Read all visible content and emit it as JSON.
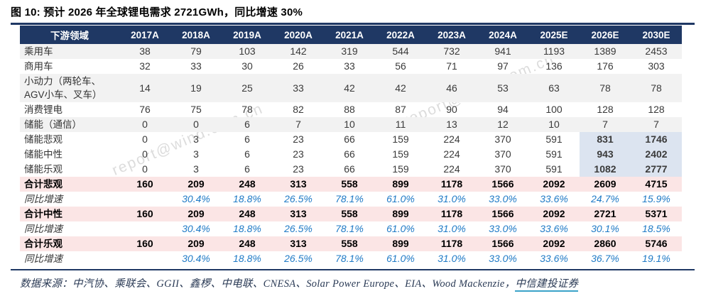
{
  "title": "图 10: 预计 2026 年全球锂电需求 2721GWh，同比增速 30%",
  "watermark": "report@wind.com.cn",
  "source": {
    "text": "数据来源：中汽协、乘联会、GGII、鑫椤、中电联、CNESA、Solar Power Europe、EIA、Wood Mackenzie，",
    "publisher": "中信建投证券"
  },
  "colors": {
    "header_bg": "#1F3864",
    "stripe_bg": "#F2F2F2",
    "total_bg": "#FBE5E5",
    "highlight_bg": "#DCE4F0",
    "growth_text": "#1F7AC6",
    "publisher_underline": "#3BA3C8"
  },
  "chart_data": {
    "type": "table",
    "title": "预计 2026 年全球锂电需求 2721GWh，同比增速 30%",
    "unit_implied": "GWh",
    "columns": [
      "下游领域",
      "2017A",
      "2018A",
      "2019A",
      "2020A",
      "2021A",
      "2022A",
      "2023A",
      "2024A",
      "2025E",
      "2026E",
      "2030E"
    ],
    "rows": [
      {
        "label": "乘用车",
        "kind": "striped",
        "highlight_last2": false,
        "values": [
          "38",
          "79",
          "103",
          "142",
          "319",
          "544",
          "732",
          "941",
          "1193",
          "1389",
          "2453"
        ]
      },
      {
        "label": "商用车",
        "kind": "plain",
        "highlight_last2": false,
        "values": [
          "32",
          "33",
          "30",
          "26",
          "33",
          "56",
          "71",
          "97",
          "136",
          "176",
          "303"
        ]
      },
      {
        "label": "小动力（两轮车、AGV小车、叉车）",
        "kind": "striped",
        "highlight_last2": false,
        "values": [
          "14",
          "19",
          "25",
          "33",
          "42",
          "42",
          "46",
          "53",
          "63",
          "78",
          "78"
        ]
      },
      {
        "label": "消费锂电",
        "kind": "plain",
        "highlight_last2": false,
        "values": [
          "76",
          "75",
          "78",
          "82",
          "88",
          "87",
          "90",
          "94",
          "100",
          "128",
          "128"
        ]
      },
      {
        "label": "储能（通信）",
        "kind": "striped",
        "highlight_last2": false,
        "values": [
          "0",
          "0",
          "6",
          "7",
          "10",
          "11",
          "13",
          "12",
          "10",
          "7",
          "7"
        ]
      },
      {
        "label": "储能悲观",
        "kind": "plain",
        "highlight_last2": true,
        "values": [
          "0",
          "3",
          "6",
          "23",
          "66",
          "159",
          "224",
          "370",
          "591",
          "831",
          "1746"
        ]
      },
      {
        "label": "储能中性",
        "kind": "plain",
        "highlight_last2": true,
        "values": [
          "0",
          "3",
          "6",
          "23",
          "66",
          "159",
          "224",
          "370",
          "591",
          "943",
          "2402"
        ]
      },
      {
        "label": "储能乐观",
        "kind": "plain",
        "highlight_last2": true,
        "values": [
          "0",
          "3",
          "6",
          "23",
          "66",
          "159",
          "224",
          "370",
          "591",
          "1082",
          "2777"
        ]
      },
      {
        "label": "合计悲观",
        "kind": "total",
        "highlight_last2": false,
        "values": [
          "160",
          "209",
          "248",
          "313",
          "558",
          "899",
          "1178",
          "1566",
          "2092",
          "2609",
          "4715"
        ]
      },
      {
        "label": "同比增速",
        "kind": "growth",
        "highlight_last2": false,
        "values": [
          "",
          "30.4%",
          "18.8%",
          "26.5%",
          "78.1%",
          "61.0%",
          "31.0%",
          "33.0%",
          "33.6%",
          "24.7%",
          "15.9%"
        ]
      },
      {
        "label": "合计中性",
        "kind": "total",
        "highlight_last2": false,
        "values": [
          "160",
          "209",
          "248",
          "313",
          "558",
          "899",
          "1178",
          "1566",
          "2092",
          "2721",
          "5371"
        ]
      },
      {
        "label": "同比增速",
        "kind": "growth",
        "highlight_last2": false,
        "values": [
          "",
          "30.4%",
          "18.8%",
          "26.5%",
          "78.1%",
          "61.0%",
          "31.0%",
          "33.0%",
          "33.6%",
          "30.1%",
          "18.5%"
        ]
      },
      {
        "label": "合计乐观",
        "kind": "total",
        "highlight_last2": false,
        "values": [
          "160",
          "209",
          "248",
          "313",
          "558",
          "899",
          "1178",
          "1566",
          "2092",
          "2860",
          "5746"
        ]
      },
      {
        "label": "同比增速",
        "kind": "growth",
        "highlight_last2": false,
        "values": [
          "",
          "30.4%",
          "18.8%",
          "26.5%",
          "78.1%",
          "61.0%",
          "31.0%",
          "33.0%",
          "33.6%",
          "36.7%",
          "19.1%"
        ]
      }
    ]
  }
}
